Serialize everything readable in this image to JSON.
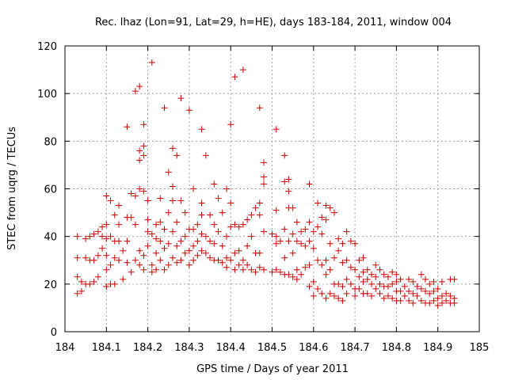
{
  "chart_data": {
    "type": "scatter",
    "title": "Rec. lhaz (Lon=91, Lat=29, h=HE), days 183-184, 2011, window 004",
    "xlabel": "GPS time / Days of year 2011",
    "ylabel": "STEC from uqrg / TECUs",
    "xlim": [
      184,
      185
    ],
    "ylim": [
      0,
      120
    ],
    "xticks": [
      184,
      184.1,
      184.2,
      184.3,
      184.4,
      184.5,
      184.6,
      184.7,
      184.8,
      184.9,
      185
    ],
    "xtick_labels": [
      "184",
      "184.1",
      "184.2",
      "184.3",
      "184.4",
      "184.5",
      "184.6",
      "184.7",
      "184.8",
      "184.9",
      "185"
    ],
    "yticks": [
      0,
      20,
      40,
      60,
      80,
      100,
      120
    ],
    "ytick_labels": [
      "0",
      "20",
      "40",
      "60",
      "80",
      "100",
      "120"
    ],
    "grid": true,
    "marker": "plus",
    "color": "#cc0000",
    "points": [
      [
        184.03,
        40
      ],
      [
        184.03,
        31
      ],
      [
        184.03,
        23
      ],
      [
        184.03,
        16
      ],
      [
        184.04,
        21
      ],
      [
        184.04,
        17
      ],
      [
        184.05,
        39
      ],
      [
        184.05,
        31
      ],
      [
        184.05,
        20
      ],
      [
        184.06,
        40
      ],
      [
        184.06,
        30
      ],
      [
        184.06,
        20
      ],
      [
        184.07,
        41
      ],
      [
        184.07,
        30
      ],
      [
        184.07,
        21
      ],
      [
        184.08,
        42
      ],
      [
        184.08,
        32
      ],
      [
        184.08,
        23
      ],
      [
        184.09,
        44
      ],
      [
        184.09,
        40
      ],
      [
        184.09,
        35
      ],
      [
        184.1,
        57
      ],
      [
        184.1,
        45
      ],
      [
        184.1,
        39
      ],
      [
        184.1,
        32
      ],
      [
        184.1,
        26
      ],
      [
        184.1,
        19
      ],
      [
        184.11,
        55
      ],
      [
        184.11,
        40
      ],
      [
        184.11,
        28
      ],
      [
        184.11,
        20
      ],
      [
        184.12,
        49
      ],
      [
        184.12,
        38
      ],
      [
        184.12,
        31
      ],
      [
        184.12,
        20
      ],
      [
        184.13,
        53
      ],
      [
        184.13,
        45
      ],
      [
        184.13,
        38
      ],
      [
        184.13,
        30
      ],
      [
        184.14,
        34
      ],
      [
        184.14,
        22
      ],
      [
        184.15,
        86
      ],
      [
        184.15,
        48
      ],
      [
        184.15,
        38
      ],
      [
        184.15,
        29
      ],
      [
        184.16,
        58
      ],
      [
        184.16,
        48
      ],
      [
        184.16,
        25
      ],
      [
        184.17,
        101
      ],
      [
        184.17,
        57
      ],
      [
        184.17,
        45
      ],
      [
        184.17,
        30
      ],
      [
        184.18,
        103
      ],
      [
        184.18,
        76
      ],
      [
        184.18,
        72
      ],
      [
        184.18,
        60
      ],
      [
        184.18,
        34
      ],
      [
        184.18,
        28
      ],
      [
        184.19,
        87
      ],
      [
        184.19,
        78
      ],
      [
        184.19,
        74
      ],
      [
        184.19,
        59
      ],
      [
        184.19,
        32
      ],
      [
        184.19,
        26
      ],
      [
        184.2,
        55
      ],
      [
        184.2,
        47
      ],
      [
        184.2,
        42
      ],
      [
        184.2,
        36
      ],
      [
        184.21,
        113
      ],
      [
        184.21,
        41
      ],
      [
        184.21,
        28
      ],
      [
        184.21,
        25
      ],
      [
        184.22,
        45
      ],
      [
        184.22,
        39
      ],
      [
        184.22,
        33
      ],
      [
        184.22,
        26
      ],
      [
        184.23,
        56
      ],
      [
        184.23,
        46
      ],
      [
        184.23,
        38
      ],
      [
        184.23,
        30
      ],
      [
        184.24,
        94
      ],
      [
        184.24,
        43
      ],
      [
        184.24,
        35
      ],
      [
        184.24,
        26
      ],
      [
        184.25,
        67
      ],
      [
        184.25,
        50
      ],
      [
        184.25,
        37
      ],
      [
        184.25,
        28
      ],
      [
        184.26,
        77
      ],
      [
        184.26,
        61
      ],
      [
        184.26,
        55
      ],
      [
        184.26,
        42
      ],
      [
        184.26,
        31
      ],
      [
        184.27,
        74
      ],
      [
        184.27,
        46
      ],
      [
        184.27,
        36
      ],
      [
        184.27,
        29
      ],
      [
        184.28,
        98
      ],
      [
        184.28,
        55
      ],
      [
        184.28,
        38
      ],
      [
        184.28,
        30
      ],
      [
        184.29,
        50
      ],
      [
        184.29,
        40
      ],
      [
        184.29,
        33
      ],
      [
        184.3,
        93
      ],
      [
        184.3,
        43
      ],
      [
        184.3,
        34
      ],
      [
        184.3,
        28
      ],
      [
        184.31,
        60
      ],
      [
        184.31,
        43
      ],
      [
        184.31,
        36
      ],
      [
        184.31,
        30
      ],
      [
        184.32,
        45
      ],
      [
        184.32,
        38
      ],
      [
        184.32,
        32
      ],
      [
        184.33,
        85
      ],
      [
        184.33,
        54
      ],
      [
        184.33,
        49
      ],
      [
        184.33,
        41
      ],
      [
        184.33,
        34
      ],
      [
        184.34,
        74
      ],
      [
        184.34,
        40
      ],
      [
        184.34,
        33
      ],
      [
        184.35,
        49
      ],
      [
        184.35,
        38
      ],
      [
        184.35,
        31
      ],
      [
        184.36,
        62
      ],
      [
        184.36,
        45
      ],
      [
        184.36,
        37
      ],
      [
        184.36,
        30
      ],
      [
        184.37,
        56
      ],
      [
        184.37,
        42
      ],
      [
        184.37,
        30
      ],
      [
        184.38,
        50
      ],
      [
        184.38,
        36
      ],
      [
        184.38,
        29
      ],
      [
        184.39,
        60
      ],
      [
        184.39,
        40
      ],
      [
        184.39,
        31
      ],
      [
        184.39,
        27
      ],
      [
        184.4,
        87
      ],
      [
        184.4,
        54
      ],
      [
        184.4,
        44
      ],
      [
        184.4,
        30
      ],
      [
        184.41,
        107
      ],
      [
        184.41,
        45
      ],
      [
        184.41,
        33
      ],
      [
        184.41,
        26
      ],
      [
        184.42,
        44
      ],
      [
        184.42,
        34
      ],
      [
        184.42,
        28
      ],
      [
        184.43,
        110
      ],
      [
        184.43,
        45
      ],
      [
        184.43,
        30
      ],
      [
        184.43,
        26
      ],
      [
        184.44,
        47
      ],
      [
        184.44,
        36
      ],
      [
        184.44,
        28
      ],
      [
        184.45,
        49
      ],
      [
        184.45,
        40
      ],
      [
        184.45,
        26
      ],
      [
        184.46,
        52
      ],
      [
        184.46,
        33
      ],
      [
        184.46,
        25
      ],
      [
        184.47,
        94
      ],
      [
        184.47,
        54
      ],
      [
        184.47,
        49
      ],
      [
        184.47,
        33
      ],
      [
        184.47,
        27
      ],
      [
        184.48,
        71
      ],
      [
        184.48,
        65
      ],
      [
        184.48,
        62
      ],
      [
        184.48,
        42
      ],
      [
        184.48,
        26
      ],
      [
        184.5,
        41
      ],
      [
        184.5,
        25
      ],
      [
        184.51,
        85
      ],
      [
        184.51,
        51
      ],
      [
        184.51,
        40
      ],
      [
        184.51,
        37
      ],
      [
        184.51,
        26
      ],
      [
        184.52,
        38
      ],
      [
        184.52,
        25
      ],
      [
        184.53,
        74
      ],
      [
        184.53,
        63
      ],
      [
        184.53,
        43
      ],
      [
        184.53,
        31
      ],
      [
        184.53,
        24
      ],
      [
        184.54,
        64
      ],
      [
        184.54,
        59
      ],
      [
        184.54,
        52
      ],
      [
        184.54,
        38
      ],
      [
        184.54,
        24
      ],
      [
        184.55,
        52
      ],
      [
        184.55,
        41
      ],
      [
        184.55,
        33
      ],
      [
        184.55,
        23
      ],
      [
        184.56,
        46
      ],
      [
        184.56,
        38
      ],
      [
        184.56,
        26
      ],
      [
        184.56,
        22
      ],
      [
        184.57,
        42
      ],
      [
        184.57,
        37
      ],
      [
        184.57,
        24
      ],
      [
        184.58,
        43
      ],
      [
        184.58,
        36
      ],
      [
        184.58,
        27
      ],
      [
        184.59,
        62
      ],
      [
        184.59,
        46
      ],
      [
        184.59,
        38
      ],
      [
        184.59,
        28
      ],
      [
        184.59,
        19
      ],
      [
        184.6,
        42
      ],
      [
        184.6,
        35
      ],
      [
        184.6,
        21
      ],
      [
        184.6,
        15
      ],
      [
        184.61,
        54
      ],
      [
        184.61,
        44
      ],
      [
        184.61,
        30
      ],
      [
        184.61,
        18
      ],
      [
        184.62,
        48
      ],
      [
        184.62,
        41
      ],
      [
        184.62,
        28
      ],
      [
        184.62,
        16
      ],
      [
        184.63,
        53
      ],
      [
        184.63,
        47
      ],
      [
        184.63,
        30
      ],
      [
        184.63,
        24
      ],
      [
        184.63,
        14
      ],
      [
        184.64,
        52
      ],
      [
        184.64,
        37
      ],
      [
        184.64,
        26
      ],
      [
        184.64,
        16
      ],
      [
        184.65,
        50
      ],
      [
        184.65,
        31
      ],
      [
        184.65,
        20
      ],
      [
        184.65,
        15
      ],
      [
        184.66,
        39
      ],
      [
        184.66,
        34
      ],
      [
        184.66,
        20
      ],
      [
        184.66,
        14
      ],
      [
        184.67,
        37
      ],
      [
        184.67,
        29
      ],
      [
        184.67,
        19
      ],
      [
        184.67,
        13
      ],
      [
        184.68,
        42
      ],
      [
        184.68,
        30
      ],
      [
        184.68,
        22
      ],
      [
        184.68,
        16
      ],
      [
        184.69,
        38
      ],
      [
        184.69,
        27
      ],
      [
        184.69,
        20
      ],
      [
        184.7,
        37
      ],
      [
        184.7,
        26
      ],
      [
        184.7,
        18
      ],
      [
        184.7,
        15
      ],
      [
        184.71,
        30
      ],
      [
        184.71,
        23
      ],
      [
        184.71,
        18
      ],
      [
        184.72,
        31
      ],
      [
        184.72,
        25
      ],
      [
        184.72,
        21
      ],
      [
        184.72,
        16
      ],
      [
        184.73,
        26
      ],
      [
        184.73,
        22
      ],
      [
        184.73,
        16
      ],
      [
        184.74,
        24
      ],
      [
        184.74,
        20
      ],
      [
        184.74,
        15
      ],
      [
        184.75,
        28
      ],
      [
        184.75,
        23
      ],
      [
        184.75,
        18
      ],
      [
        184.76,
        26
      ],
      [
        184.76,
        20
      ],
      [
        184.76,
        16
      ],
      [
        184.77,
        24
      ],
      [
        184.77,
        19
      ],
      [
        184.77,
        14
      ],
      [
        184.78,
        23
      ],
      [
        184.78,
        19
      ],
      [
        184.78,
        15
      ],
      [
        184.79,
        25
      ],
      [
        184.79,
        20
      ],
      [
        184.79,
        14
      ],
      [
        184.8,
        24
      ],
      [
        184.8,
        21
      ],
      [
        184.8,
        17
      ],
      [
        184.8,
        13
      ],
      [
        184.81,
        22
      ],
      [
        184.81,
        17
      ],
      [
        184.81,
        13
      ],
      [
        184.82,
        19
      ],
      [
        184.82,
        15
      ],
      [
        184.83,
        22
      ],
      [
        184.83,
        17
      ],
      [
        184.83,
        13
      ],
      [
        184.84,
        21
      ],
      [
        184.84,
        16
      ],
      [
        184.84,
        12
      ],
      [
        184.85,
        19
      ],
      [
        184.85,
        15
      ],
      [
        184.86,
        24
      ],
      [
        184.86,
        18
      ],
      [
        184.86,
        13
      ],
      [
        184.87,
        22
      ],
      [
        184.87,
        17
      ],
      [
        184.87,
        12
      ],
      [
        184.88,
        20
      ],
      [
        184.88,
        16
      ],
      [
        184.88,
        12
      ],
      [
        184.89,
        21
      ],
      [
        184.89,
        17
      ],
      [
        184.89,
        13
      ],
      [
        184.9,
        18
      ],
      [
        184.9,
        14
      ],
      [
        184.9,
        11
      ],
      [
        184.91,
        21
      ],
      [
        184.91,
        15
      ],
      [
        184.91,
        12
      ],
      [
        184.92,
        16
      ],
      [
        184.92,
        13
      ],
      [
        184.93,
        22
      ],
      [
        184.93,
        15
      ],
      [
        184.93,
        12
      ],
      [
        184.94,
        22
      ],
      [
        184.94,
        14
      ],
      [
        184.94,
        12
      ]
    ]
  }
}
